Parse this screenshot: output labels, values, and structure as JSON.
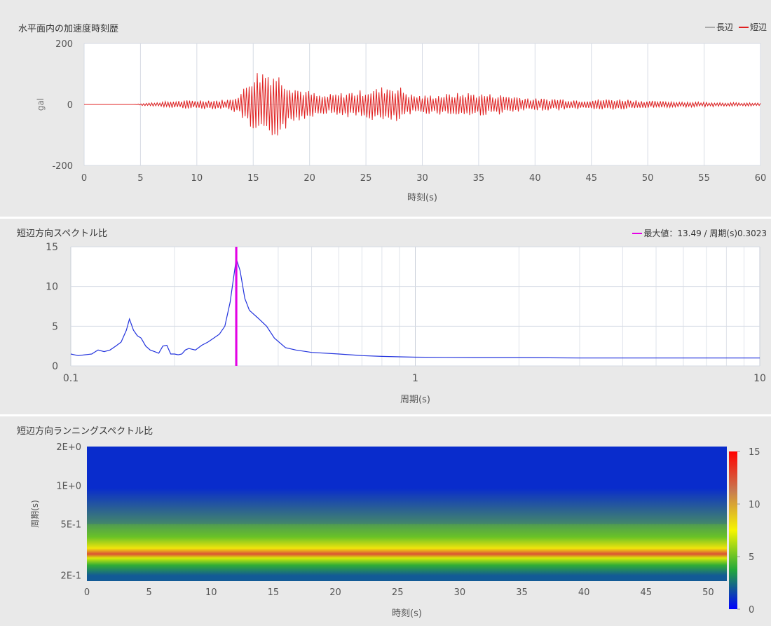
{
  "panel1": {
    "title": "水平面内の加速度時刻歴",
    "legend": [
      {
        "label": "長辺",
        "color": "#aaaaaa"
      },
      {
        "label": "短辺",
        "color": "#e02020"
      }
    ]
  },
  "panel2": {
    "title": "短辺方向スペクトル比",
    "legend": [
      {
        "label": "最大値：13.49 / 周期(s)0.3023",
        "color": "#e600e6"
      }
    ]
  },
  "panel3": {
    "title": "短辺方向ランニングスペクトル比"
  },
  "chart_data": [
    {
      "type": "line",
      "title": "水平面内の加速度時刻歴",
      "xlabel": "時刻(s)",
      "ylabel": "gal",
      "xlim": [
        0,
        60
      ],
      "ylim": [
        -200,
        200
      ],
      "xticks": [
        0,
        5,
        10,
        15,
        20,
        25,
        30,
        35,
        40,
        45,
        50,
        55,
        60
      ],
      "yticks": [
        200,
        0,
        -200
      ],
      "grid": true,
      "legend_position": "top-right",
      "series": [
        {
          "name": "長辺",
          "color": "#aaaaaa",
          "visible_in_plot": false
        },
        {
          "name": "短辺",
          "color": "#e02020",
          "amplitude_envelope": {
            "t": [
              0,
              4.5,
              5,
              6,
              8,
              10,
              12,
              13,
              14,
              15,
              16,
              17,
              18,
              19,
              20,
              21,
              22,
              24,
              26,
              27,
              28,
              29,
              30,
              32,
              34,
              36,
              38,
              40,
              42,
              44,
              46,
              48,
              50,
              52,
              55,
              58,
              60
            ],
            "max": [
              0,
              0,
              3,
              6,
              12,
              15,
              15,
              18,
              45,
              110,
              120,
              110,
              80,
              55,
              45,
              30,
              35,
              45,
              55,
              65,
              60,
              35,
              30,
              35,
              40,
              35,
              30,
              20,
              20,
              15,
              18,
              18,
              12,
              10,
              8,
              6,
              5
            ]
          }
        }
      ]
    },
    {
      "type": "line",
      "title": "短辺方向スペクトル比",
      "xlabel": "周期(s)",
      "ylabel": "",
      "xscale": "log",
      "xlim": [
        0.1,
        10
      ],
      "ylim": [
        0,
        15
      ],
      "xticks": [
        0.1,
        1,
        10
      ],
      "yticks": [
        0,
        5,
        10,
        15
      ],
      "grid": true,
      "legend_position": "top-right",
      "peak": {
        "value": 13.49,
        "period": 0.3023,
        "color": "#e600e6"
      },
      "series": [
        {
          "color": "#2233dd",
          "x": [
            0.1,
            0.105,
            0.11,
            0.115,
            0.12,
            0.125,
            0.13,
            0.135,
            0.14,
            0.145,
            0.148,
            0.152,
            0.156,
            0.16,
            0.165,
            0.17,
            0.175,
            0.18,
            0.185,
            0.19,
            0.195,
            0.2,
            0.205,
            0.21,
            0.215,
            0.22,
            0.23,
            0.24,
            0.25,
            0.26,
            0.27,
            0.28,
            0.29,
            0.3,
            0.3023,
            0.31,
            0.32,
            0.33,
            0.35,
            0.37,
            0.39,
            0.42,
            0.45,
            0.5,
            0.6,
            0.7,
            0.8,
            0.9,
            1.0,
            1.5,
            2,
            3,
            5,
            7,
            10
          ],
          "y": [
            1.5,
            1.3,
            1.4,
            1.5,
            2.0,
            1.8,
            2.0,
            2.5,
            3.0,
            4.5,
            5.9,
            4.5,
            3.8,
            3.5,
            2.5,
            2.0,
            1.8,
            1.6,
            2.5,
            2.6,
            1.5,
            1.5,
            1.4,
            1.5,
            2.0,
            2.2,
            2.0,
            2.6,
            3.0,
            3.5,
            4.0,
            5.0,
            8.0,
            12.5,
            13.49,
            12.0,
            8.5,
            7.0,
            6.0,
            5.0,
            3.5,
            2.3,
            2.0,
            1.7,
            1.5,
            1.3,
            1.2,
            1.15,
            1.1,
            1.05,
            1.05,
            1.0,
            1.0,
            1.0,
            1.0
          ]
        }
      ]
    },
    {
      "type": "heatmap",
      "title": "短辺方向ランニングスペクトル比",
      "xlabel": "時刻(s)",
      "ylabel": "周期(s)",
      "xlim": [
        0,
        51.5
      ],
      "yscale": "log",
      "ylim": [
        0.18,
        2.0
      ],
      "xticks": [
        0,
        5,
        10,
        15,
        20,
        25,
        30,
        35,
        40,
        45,
        50
      ],
      "ytick_labels": [
        {
          "value": 2.0,
          "label": "2E+0"
        },
        {
          "value": 1.0,
          "label": "1E+0"
        },
        {
          "value": 0.5,
          "label": "5E-1"
        },
        {
          "value": 0.2,
          "label": "2E-1"
        }
      ],
      "colorbar": {
        "range": [
          0,
          15
        ],
        "ticks": [
          0,
          5,
          10,
          15
        ],
        "colors": [
          "#0000ff",
          "#22a83a",
          "#f6f500",
          "#c87a50",
          "#ff0000"
        ]
      },
      "description_bands": [
        {
          "period_range": [
            0.45,
            2.0
          ],
          "value": 1.0
        },
        {
          "period_range": [
            0.35,
            0.45
          ],
          "value": 5.0
        },
        {
          "period_range": [
            0.3,
            0.35
          ],
          "value": 8.0
        },
        {
          "period_range": [
            0.285,
            0.3
          ],
          "value": 12.5
        },
        {
          "period_range": [
            0.26,
            0.285
          ],
          "value": 7.0
        },
        {
          "period_range": [
            0.22,
            0.26
          ],
          "value": 4.0
        },
        {
          "period_range": [
            0.18,
            0.22
          ],
          "value": 2.0
        }
      ]
    }
  ]
}
